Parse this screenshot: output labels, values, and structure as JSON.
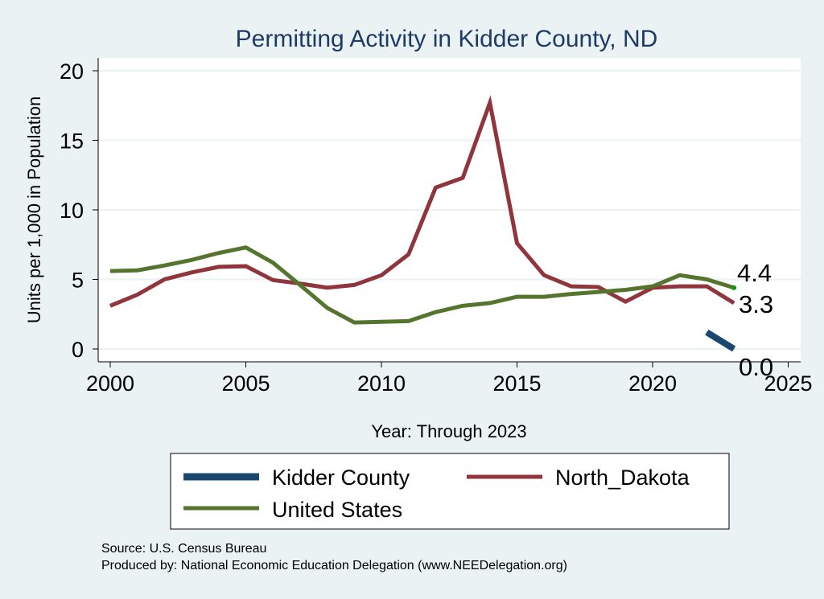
{
  "chart_data": {
    "type": "line",
    "title": "Permitting Activity in Kidder County, ND",
    "xlabel": "Year: Through 2023",
    "ylabel": "Units per 1,000 in Population",
    "xlim": [
      2000,
      2025
    ],
    "ylim": [
      0,
      20
    ],
    "x_ticks": [
      "2000",
      "2005",
      "2010",
      "2015",
      "2020",
      "2025"
    ],
    "y_ticks": [
      "0",
      "5",
      "10",
      "15",
      "20"
    ],
    "grid": true,
    "legend_position": "bottom",
    "series": [
      {
        "name": "Kidder County",
        "color": "#1a476f",
        "x": [
          2022,
          2023
        ],
        "values": [
          1.2,
          0.0
        ],
        "end_label": "0.0"
      },
      {
        "name": "North_Dakota",
        "color": "#90353b",
        "x": [
          2000,
          2001,
          2002,
          2003,
          2004,
          2005,
          2006,
          2007,
          2008,
          2009,
          2010,
          2011,
          2012,
          2013,
          2014,
          2015,
          2016,
          2017,
          2018,
          2019,
          2020,
          2021,
          2022,
          2023
        ],
        "values": [
          3.1,
          3.9,
          5.0,
          5.5,
          5.9,
          5.95,
          4.95,
          4.7,
          4.4,
          4.6,
          5.3,
          6.8,
          11.6,
          12.3,
          17.7,
          7.6,
          5.3,
          4.5,
          4.45,
          3.4,
          4.4,
          4.5,
          4.5,
          3.3
        ],
        "end_label": "3.3"
      },
      {
        "name": "United States",
        "color": "#55752f",
        "x": [
          2000,
          2001,
          2002,
          2003,
          2004,
          2005,
          2006,
          2007,
          2008,
          2009,
          2010,
          2011,
          2012,
          2013,
          2014,
          2015,
          2016,
          2017,
          2018,
          2019,
          2020,
          2021,
          2022,
          2023
        ],
        "values": [
          5.6,
          5.65,
          6.0,
          6.4,
          6.9,
          7.3,
          6.2,
          4.6,
          2.95,
          1.9,
          1.95,
          2.0,
          2.65,
          3.1,
          3.3,
          3.75,
          3.75,
          3.95,
          4.1,
          4.25,
          4.5,
          5.3,
          5.0,
          4.4
        ],
        "end_label": "4.4"
      }
    ]
  },
  "notes": {
    "source": "Source: U.S. Census Bureau",
    "produced": "Produced by: National Economic Education Delegation (www.NEEDelegation.org)"
  }
}
